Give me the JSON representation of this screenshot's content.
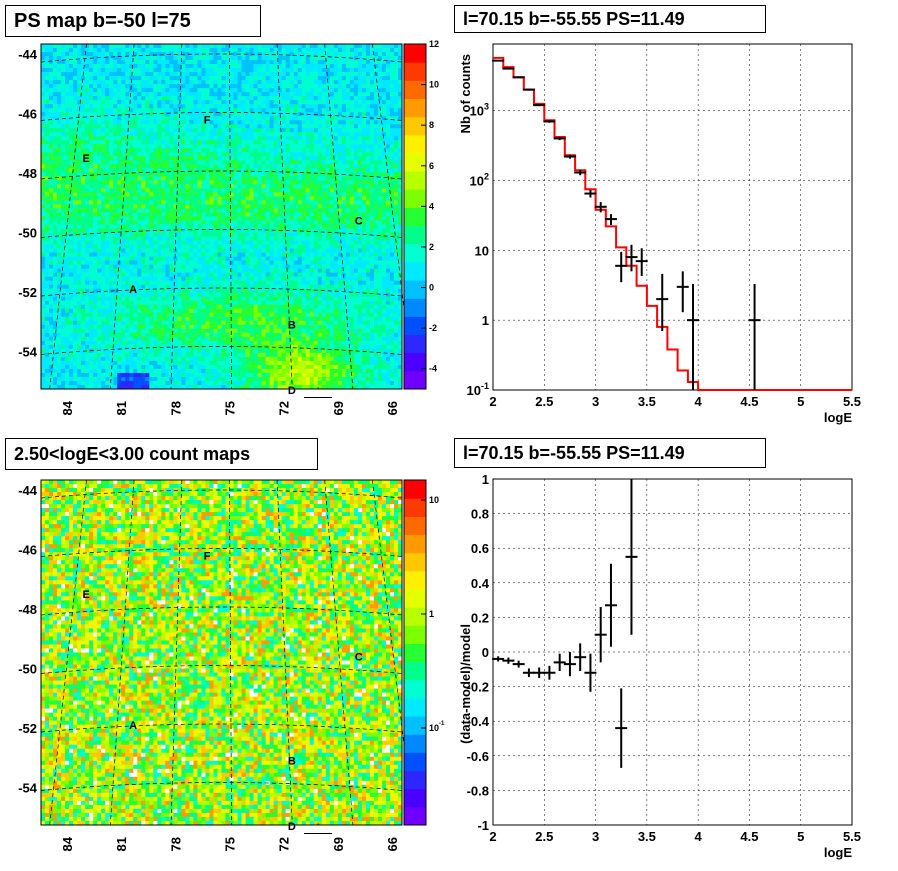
{
  "panels": {
    "top_left": {
      "title": "PS map b=-50 l=75"
    },
    "top_right": {
      "title": "l=70.15 b=-55.55 PS=11.49"
    },
    "bottom_left": {
      "title": "2.50<logE<3.00 count maps"
    },
    "bottom_right": {
      "title": "l=70.15 b=-55.55 PS=11.49"
    }
  },
  "chart_data": [
    {
      "type": "heatmap",
      "title": "PS map b=-50 l=75",
      "ylabels": [
        "-44",
        "-46",
        "-48",
        "-50",
        "-52",
        "-54"
      ],
      "xlabels": [
        "84",
        "81",
        "78",
        "75",
        "72",
        "69",
        "66"
      ],
      "colorbar": {
        "min": -5,
        "max": 12,
        "ticks": [
          "12",
          "10",
          "8",
          "6",
          "4",
          "2",
          "0",
          "-2",
          "-4"
        ]
      },
      "sources": [
        {
          "label": "F",
          "lon": 76.3,
          "lat": -46.2
        },
        {
          "label": "E",
          "lon": 83.0,
          "lat": -47.5
        },
        {
          "label": "C",
          "lon": 67.9,
          "lat": -49.6
        },
        {
          "label": "A",
          "lon": 80.4,
          "lat": -51.9
        },
        {
          "label": "B",
          "lon": 71.6,
          "lat": -53.1
        },
        {
          "label": "D",
          "lon": 71.6,
          "lat": -55.3
        }
      ],
      "marker": {
        "lon": 70.15,
        "lat": -55.55
      }
    },
    {
      "type": "line",
      "title": "l=70.15 b=-55.55 PS=11.49",
      "xlabel": "logE",
      "ylabel": "Nb of counts",
      "xlim": [
        2,
        5.5
      ],
      "ylim": [
        0.1,
        9000
      ],
      "yscale": "log",
      "xticks": [
        "2",
        "2.5",
        "3",
        "3.5",
        "4",
        "4.5",
        "5",
        "5.5"
      ],
      "yticks": [
        "10^-1",
        "1",
        "10",
        "10^2",
        "10^3"
      ],
      "grid": true,
      "series": [
        {
          "style": "points",
          "color": "#000000",
          "x": [
            2.05,
            2.15,
            2.25,
            2.35,
            2.45,
            2.55,
            2.65,
            2.75,
            2.85,
            2.95,
            3.05,
            3.15,
            3.25,
            3.35,
            3.45,
            3.65,
            3.85,
            3.95,
            4.55
          ],
          "y": [
            5200,
            4000,
            3000,
            2000,
            1200,
            700,
            400,
            220,
            130,
            65,
            42,
            28,
            6,
            8,
            7,
            2,
            3,
            1,
            1
          ],
          "err_lo": [
            80,
            70,
            60,
            50,
            40,
            30,
            22,
            15,
            11,
            8,
            7,
            5,
            2.5,
            3,
            2.7,
            1.3,
            1.7,
            0.9,
            0.9
          ],
          "err_hi": [
            80,
            70,
            60,
            50,
            40,
            30,
            22,
            15,
            11,
            8,
            7,
            5,
            3.5,
            4,
            3.7,
            2.6,
            2.0,
            2.3,
            2.3
          ]
        },
        {
          "style": "step",
          "color": "#ff0000",
          "edges": [
            2.0,
            2.1,
            2.2,
            2.3,
            2.4,
            2.5,
            2.6,
            2.7,
            2.8,
            2.9,
            3.0,
            3.1,
            3.2,
            3.3,
            3.4,
            3.5,
            3.6,
            3.7,
            3.8,
            3.9,
            4.0,
            5.5
          ],
          "values": [
            5700,
            4200,
            3000,
            2000,
            1250,
            730,
            420,
            230,
            140,
            75,
            38,
            22,
            11,
            6,
            3.1,
            1.6,
            0.8,
            0.38,
            0.19,
            0.13,
            0.1
          ]
        }
      ]
    },
    {
      "type": "heatmap",
      "title": "2.50<logE<3.00 count maps",
      "ylabels": [
        "-44",
        "-46",
        "-48",
        "-50",
        "-52",
        "-54"
      ],
      "xlabels": [
        "84",
        "81",
        "78",
        "75",
        "72",
        "69",
        "66"
      ],
      "colorbar": {
        "scale": "log",
        "ticks": [
          "10",
          "1",
          "10^-1"
        ]
      },
      "sources": [
        {
          "label": "F",
          "lon": 76.3,
          "lat": -46.2
        },
        {
          "label": "E",
          "lon": 83.0,
          "lat": -47.5
        },
        {
          "label": "C",
          "lon": 67.9,
          "lat": -49.6
        },
        {
          "label": "A",
          "lon": 80.4,
          "lat": -51.9
        },
        {
          "label": "B",
          "lon": 71.6,
          "lat": -53.1
        },
        {
          "label": "D",
          "lon": 71.6,
          "lat": -55.3
        }
      ],
      "marker": {
        "lon": 70.15,
        "lat": -55.55
      }
    },
    {
      "type": "scatter",
      "title": "l=70.15 b=-55.55 PS=11.49",
      "xlabel": "logE",
      "ylabel": "(data-model)/model",
      "xlim": [
        2,
        5.5
      ],
      "ylim": [
        -1,
        1
      ],
      "xticks": [
        "2",
        "2.5",
        "3",
        "3.5",
        "4",
        "4.5",
        "5",
        "5.5"
      ],
      "yticks": [
        "-1",
        "-0.8",
        "-0.6",
        "-0.4",
        "-0.2",
        "0",
        "0.2",
        "0.4",
        "0.6",
        "0.8",
        "1"
      ],
      "grid": true,
      "series": [
        {
          "style": "points",
          "color": "#000000",
          "x": [
            2.05,
            2.15,
            2.25,
            2.35,
            2.45,
            2.55,
            2.65,
            2.75,
            2.85,
            2.95,
            3.05,
            3.15,
            3.25,
            3.35
          ],
          "y": [
            -0.04,
            -0.05,
            -0.07,
            -0.12,
            -0.12,
            -0.12,
            -0.06,
            -0.07,
            -0.03,
            -0.12,
            0.1,
            0.27,
            -0.44,
            0.55
          ],
          "err": [
            0.015,
            0.018,
            0.02,
            0.025,
            0.03,
            0.04,
            0.05,
            0.07,
            0.08,
            0.11,
            0.16,
            0.24,
            0.23,
            0.45
          ]
        }
      ]
    }
  ]
}
